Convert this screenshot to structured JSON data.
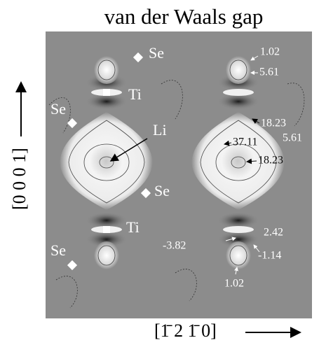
{
  "figure": {
    "title": "van der Waals gap",
    "y_axis_label": "[0 0 0 1]",
    "x_axis_label": "[1̄ 2 1̄ 0]",
    "atoms": [
      "Se",
      "Ti",
      "Se",
      "Li",
      "Se",
      "Ti",
      "Se"
    ],
    "contour_labels": [
      "1.02",
      "5.61",
      "18.23",
      "37.11",
      "5.61",
      "18.23",
      "2.42",
      "-3.82",
      "-1.14",
      "1.02"
    ]
  }
}
